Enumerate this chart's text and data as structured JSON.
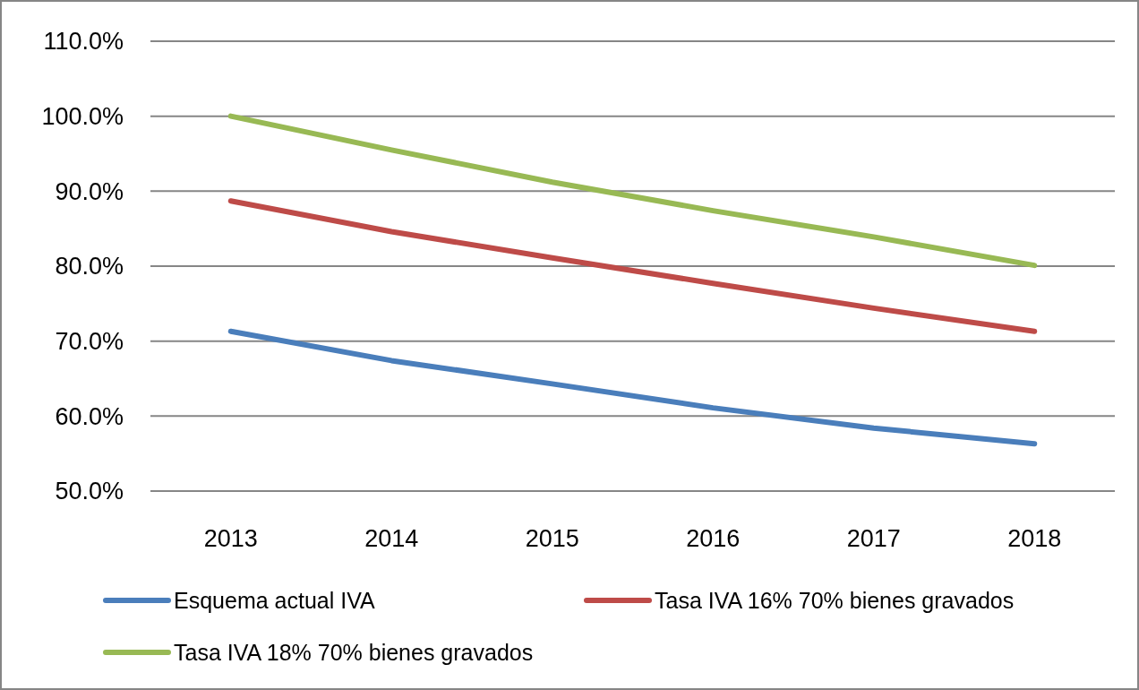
{
  "chart_data": {
    "type": "line",
    "categories": [
      "2013",
      "2014",
      "2015",
      "2016",
      "2017",
      "2018"
    ],
    "series": [
      {
        "name": "Esquema actual IVA",
        "color": "#4a7ebb",
        "values": [
          71.3,
          67.4,
          64.3,
          61.1,
          58.4,
          56.3
        ]
      },
      {
        "name": "Tasa IVA 16% 70% bienes gravados",
        "color": "#be4b48",
        "values": [
          88.7,
          84.6,
          81.1,
          77.7,
          74.4,
          71.3
        ]
      },
      {
        "name": "Tasa IVA 18% 70% bienes gravados",
        "color": "#98b954",
        "values": [
          100.0,
          95.5,
          91.2,
          87.4,
          83.9,
          80.1
        ]
      }
    ],
    "ylim": [
      50,
      110
    ],
    "yticks": [
      {
        "value": 50,
        "label": "50.0%"
      },
      {
        "value": 60,
        "label": "60.0%"
      },
      {
        "value": 70,
        "label": "70.0%"
      },
      {
        "value": 80,
        "label": "80.0%"
      },
      {
        "value": 90,
        "label": "90.0%"
      },
      {
        "value": 100,
        "label": "100.0%"
      },
      {
        "value": 110,
        "label": "110.0%"
      }
    ],
    "grid": "y",
    "legend": "bottom",
    "marker": "none",
    "line_style": "solid"
  }
}
